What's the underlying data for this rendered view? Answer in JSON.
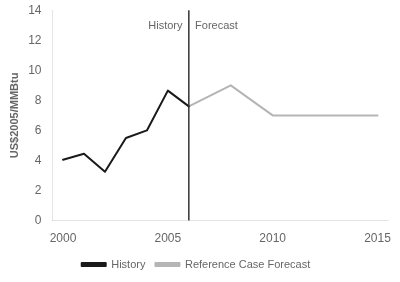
{
  "chart_data": {
    "type": "line",
    "y_label": "US$2005/MMBtu",
    "xlim": [
      1999.5,
      2015.5
    ],
    "xticks": [
      2000,
      2005,
      2010,
      2015
    ],
    "ylim": [
      0,
      14
    ],
    "yticks": [
      0,
      2,
      4,
      6,
      8,
      10,
      12,
      14
    ],
    "grid": false,
    "legend": "bottom",
    "series": [
      {
        "name": "History",
        "color": "#1a1a1a",
        "x": [
          2000,
          2001,
          2002,
          2003,
          2004,
          2005,
          2006
        ],
        "values": [
          4.05,
          4.45,
          3.25,
          5.5,
          6.0,
          8.65,
          7.6
        ]
      },
      {
        "name": "Reference Case Forecast",
        "color": "#b5b5b5",
        "x": [
          2006,
          2008,
          2010,
          2015
        ],
        "values": [
          7.6,
          9.0,
          7.0,
          7.0
        ]
      }
    ],
    "vline": {
      "x": 2006,
      "color": "#333333"
    },
    "annotations": [
      {
        "text": "History",
        "x": 2005.7,
        "y": 13.3
      },
      {
        "text": "Forecast",
        "x": 2006.3,
        "y": 13.3
      }
    ]
  }
}
